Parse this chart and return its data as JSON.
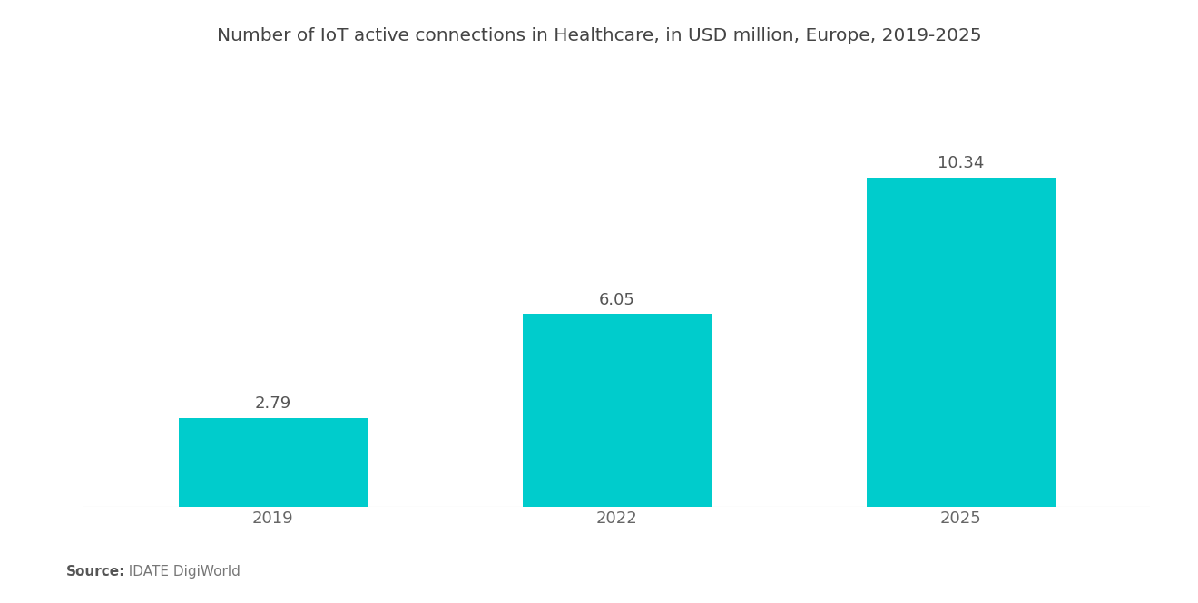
{
  "title": "Number of IoT active connections in Healthcare, in USD million, Europe, 2019-2025",
  "categories": [
    "2019",
    "2022",
    "2025"
  ],
  "values": [
    2.79,
    6.05,
    10.34
  ],
  "bar_color": "#00CCCC",
  "background_color": "#ffffff",
  "source_label": "Source:",
  "source_text": "  IDATE DigiWorld",
  "title_fontsize": 14.5,
  "label_fontsize": 13,
  "tick_fontsize": 13,
  "source_fontsize": 11,
  "bar_width": 0.55,
  "ylim": [
    0,
    12.5
  ],
  "x_positions": [
    0,
    1,
    2
  ]
}
